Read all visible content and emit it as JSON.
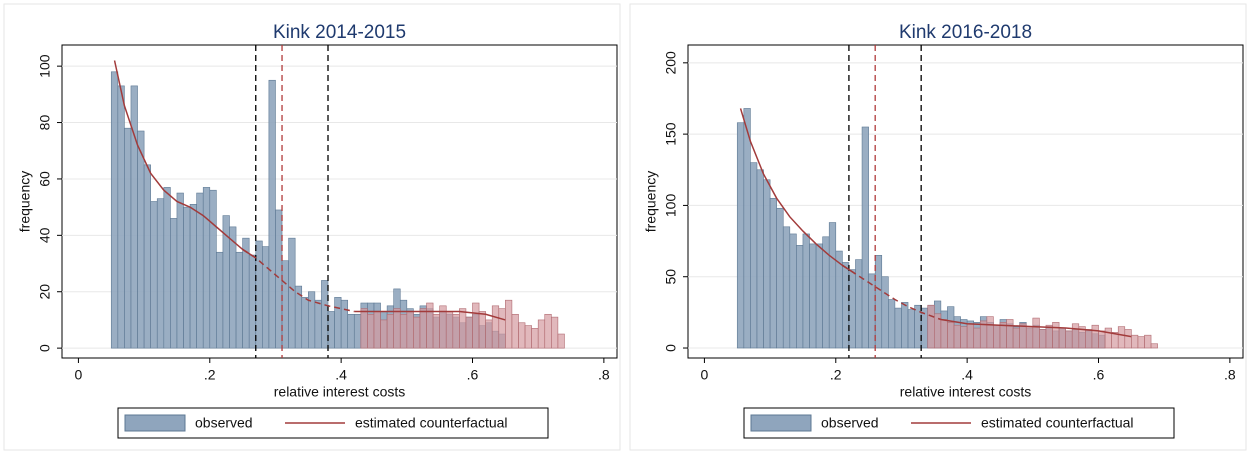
{
  "chart_data": [
    {
      "type": "histogram",
      "title": "Kink 2014-2015",
      "x_label": "relative interest costs",
      "y_label": "frequency",
      "xlim": [
        -0.025,
        0.82
      ],
      "ylim": [
        -3.5,
        107.5
      ],
      "xticks": [
        0,
        {
          "value": 0.2,
          "label": ".2"
        },
        {
          "value": 0.4,
          "label": ".4"
        },
        {
          "value": 0.6,
          "label": ".6"
        },
        {
          "value": 0.8,
          "label": ".8"
        }
      ],
      "yticks": [
        0,
        20,
        40,
        60,
        80,
        100
      ],
      "grid": true,
      "vlines": [
        {
          "x": 0.27,
          "color": "#000000"
        },
        {
          "x": 0.31,
          "color": "#b03a3a"
        },
        {
          "x": 0.38,
          "color": "#000000"
        }
      ],
      "series": [
        {
          "name": "observed",
          "color": "#8fa5bd",
          "bins": [
            0.05,
            0.06,
            0.07,
            0.08,
            0.09,
            0.1,
            0.11,
            0.12,
            0.13,
            0.14,
            0.15,
            0.16,
            0.17,
            0.18,
            0.19,
            0.2,
            0.21,
            0.22,
            0.23,
            0.24,
            0.25,
            0.26,
            0.27,
            0.28,
            0.29,
            0.3,
            0.31,
            0.32,
            0.33,
            0.34,
            0.35,
            0.36,
            0.37,
            0.38,
            0.39,
            0.4,
            0.41,
            0.42,
            0.43,
            0.44,
            0.45,
            0.46,
            0.47,
            0.48,
            0.49,
            0.5,
            0.51,
            0.52,
            0.53,
            0.54,
            0.55,
            0.56,
            0.57,
            0.58,
            0.59,
            0.6,
            0.61,
            0.62,
            0.63,
            0.64,
            0.65
          ],
          "values": [
            98,
            93,
            78,
            93,
            77,
            65,
            52,
            53,
            57,
            46,
            55,
            50,
            51,
            55,
            57,
            56,
            34,
            47,
            43,
            34,
            39,
            33,
            38,
            36,
            95,
            49,
            31,
            39,
            22,
            18,
            20,
            17,
            24,
            13,
            18,
            17,
            12,
            12,
            16,
            16,
            16,
            13,
            15,
            21,
            17,
            14,
            12,
            15,
            14,
            11,
            13,
            12,
            11,
            9,
            11,
            12,
            8,
            9,
            6,
            5
          ]
        },
        {
          "color": "#d49a9f",
          "bins": [
            0.43,
            0.44,
            0.45,
            0.46,
            0.47,
            0.48,
            0.49,
            0.5,
            0.51,
            0.52,
            0.53,
            0.54,
            0.55,
            0.56,
            0.57,
            0.58,
            0.59,
            0.6,
            0.61,
            0.62,
            0.63,
            0.64,
            0.65,
            0.66,
            0.67,
            0.68,
            0.69,
            0.7,
            0.71,
            0.72,
            0.73,
            0.74
          ],
          "values": [
            14,
            12,
            13,
            10,
            12,
            14,
            12,
            13,
            11,
            14,
            16,
            12,
            15,
            13,
            12,
            14,
            11,
            16,
            13,
            10,
            15,
            14,
            17,
            12,
            9,
            8,
            7,
            10,
            12,
            11,
            5
          ]
        },
        {
          "name": "estimated counterfactual",
          "color": "#a23b3b",
          "x": [
            0.055,
            0.07,
            0.09,
            0.11,
            0.13,
            0.15,
            0.17,
            0.19,
            0.21,
            0.23,
            0.25,
            0.27,
            0.29,
            0.31,
            0.33,
            0.35,
            0.38,
            0.42,
            0.46,
            0.5,
            0.54,
            0.58,
            0.62,
            0.65
          ],
          "values": [
            102,
            86,
            72,
            62,
            56,
            52,
            50,
            47,
            43,
            39,
            35,
            32,
            28,
            24,
            20,
            17,
            15,
            13,
            13,
            13,
            13,
            13,
            12,
            10
          ]
        }
      ]
    },
    {
      "type": "histogram",
      "title": "Kink 2016-2018",
      "x_label": "relative interest costs",
      "y_label": "frequency",
      "xlim": [
        -0.025,
        0.82
      ],
      "ylim": [
        -7,
        212.5
      ],
      "xticks": [
        0,
        {
          "value": 0.2,
          "label": ".2"
        },
        {
          "value": 0.4,
          "label": ".4"
        },
        {
          "value": 0.6,
          "label": ".6"
        },
        {
          "value": 0.8,
          "label": ".8"
        }
      ],
      "yticks": [
        0,
        50,
        100,
        150,
        200
      ],
      "grid": true,
      "vlines": [
        {
          "x": 0.22,
          "color": "#000000"
        },
        {
          "x": 0.26,
          "color": "#b03a3a"
        },
        {
          "x": 0.33,
          "color": "#000000"
        }
      ],
      "series": [
        {
          "name": "observed",
          "color": "#8fa5bd",
          "bins": [
            0.05,
            0.06,
            0.07,
            0.08,
            0.09,
            0.1,
            0.11,
            0.12,
            0.13,
            0.14,
            0.15,
            0.16,
            0.17,
            0.18,
            0.19,
            0.2,
            0.21,
            0.22,
            0.23,
            0.24,
            0.25,
            0.26,
            0.27,
            0.28,
            0.29,
            0.3,
            0.31,
            0.32,
            0.33,
            0.34,
            0.35,
            0.36,
            0.37,
            0.38,
            0.39,
            0.4,
            0.41,
            0.42,
            0.43,
            0.44,
            0.45,
            0.46,
            0.47,
            0.48,
            0.49,
            0.5,
            0.51,
            0.52,
            0.53,
            0.54,
            0.55,
            0.56,
            0.57,
            0.58,
            0.59,
            0.6,
            0.61
          ],
          "values": [
            158,
            168,
            130,
            125,
            118,
            105,
            98,
            85,
            80,
            72,
            80,
            73,
            73,
            78,
            88,
            68,
            60,
            55,
            62,
            155,
            52,
            65,
            50,
            34,
            28,
            32,
            27,
            30,
            28,
            30,
            33,
            26,
            29,
            22,
            20,
            19,
            18,
            22,
            18,
            16,
            20,
            17,
            15,
            18,
            14,
            16,
            13,
            15,
            12,
            14,
            12,
            13,
            11,
            12,
            10,
            9
          ]
        },
        {
          "color": "#d49a9f",
          "bins": [
            0.34,
            0.35,
            0.36,
            0.37,
            0.38,
            0.39,
            0.4,
            0.41,
            0.42,
            0.43,
            0.44,
            0.45,
            0.46,
            0.47,
            0.48,
            0.49,
            0.5,
            0.51,
            0.52,
            0.53,
            0.54,
            0.55,
            0.56,
            0.57,
            0.58,
            0.59,
            0.6,
            0.61,
            0.62,
            0.63,
            0.64,
            0.65,
            0.66,
            0.67,
            0.68,
            0.69
          ],
          "values": [
            30,
            24,
            20,
            18,
            16,
            15,
            17,
            14,
            19,
            22,
            16,
            18,
            20,
            14,
            17,
            15,
            21,
            13,
            16,
            18,
            14,
            12,
            17,
            15,
            13,
            16,
            12,
            14,
            11,
            15,
            13,
            9,
            8,
            9,
            3
          ]
        },
        {
          "name": "estimated counterfactual",
          "color": "#a23b3b",
          "x": [
            0.055,
            0.07,
            0.09,
            0.11,
            0.13,
            0.15,
            0.17,
            0.19,
            0.21,
            0.23,
            0.25,
            0.27,
            0.29,
            0.31,
            0.33,
            0.36,
            0.4,
            0.45,
            0.5,
            0.55,
            0.6,
            0.65
          ],
          "values": [
            168,
            145,
            122,
            105,
            92,
            82,
            73,
            65,
            58,
            52,
            46,
            40,
            34,
            29,
            25,
            20,
            17,
            16,
            15,
            14,
            12,
            8
          ]
        }
      ]
    }
  ]
}
